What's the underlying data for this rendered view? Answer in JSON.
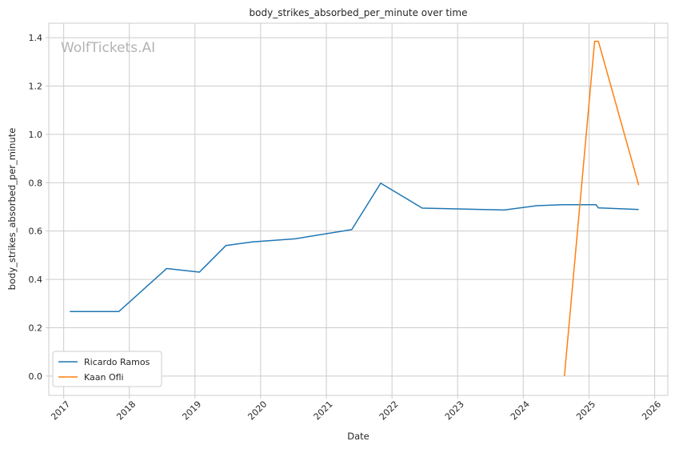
{
  "chart_data": {
    "type": "line",
    "title": "body_strikes_absorbed_per_minute over time",
    "xlabel": "Date",
    "ylabel": "body_strikes_absorbed_per_minute",
    "watermark": "WolfTickets.AI",
    "xlim": [
      "2016-10-10",
      "2026-03-15"
    ],
    "ylim": [
      -0.08,
      1.46
    ],
    "x_ticks": [
      "2017-01-01",
      "2018-01-01",
      "2019-01-01",
      "2020-01-01",
      "2021-01-01",
      "2022-01-01",
      "2023-01-01",
      "2024-01-01",
      "2025-01-01",
      "2026-01-01"
    ],
    "x_tick_labels": [
      "2017",
      "2018",
      "2019",
      "2020",
      "2021",
      "2022",
      "2023",
      "2024",
      "2025",
      "2026"
    ],
    "y_ticks": [
      0.0,
      0.2,
      0.4,
      0.6,
      0.8,
      1.0,
      1.2,
      1.4
    ],
    "y_tick_labels": [
      "0.0",
      "0.2",
      "0.4",
      "0.6",
      "0.8",
      "1.0",
      "1.2",
      "1.4"
    ],
    "grid": true,
    "legend_position": "bottom-left",
    "series": [
      {
        "name": "Ricardo Ramos",
        "color": "#1f77b4",
        "points": [
          [
            "2017-02-04",
            0.267
          ],
          [
            "2017-11-04",
            0.267
          ],
          [
            "2018-07-28",
            0.445
          ],
          [
            "2019-01-26",
            0.43
          ],
          [
            "2019-06-22",
            0.54
          ],
          [
            "2019-11-16",
            0.555
          ],
          [
            "2020-07-11",
            0.568
          ],
          [
            "2021-05-22",
            0.606
          ],
          [
            "2021-10-30",
            0.798
          ],
          [
            "2022-06-18",
            0.695
          ],
          [
            "2023-09-16",
            0.687
          ],
          [
            "2024-03-16",
            0.705
          ],
          [
            "2024-08-10",
            0.709
          ],
          [
            "2025-02-08",
            0.709
          ],
          [
            "2025-02-22",
            0.696
          ],
          [
            "2025-10-04",
            0.689
          ]
        ]
      },
      {
        "name": "Kaan Ofli",
        "color": "#ff7f0e",
        "points": [
          [
            "2024-08-17",
            0.0
          ],
          [
            "2025-02-01",
            1.385
          ],
          [
            "2025-02-22",
            1.385
          ],
          [
            "2025-10-04",
            0.79
          ]
        ]
      }
    ]
  }
}
